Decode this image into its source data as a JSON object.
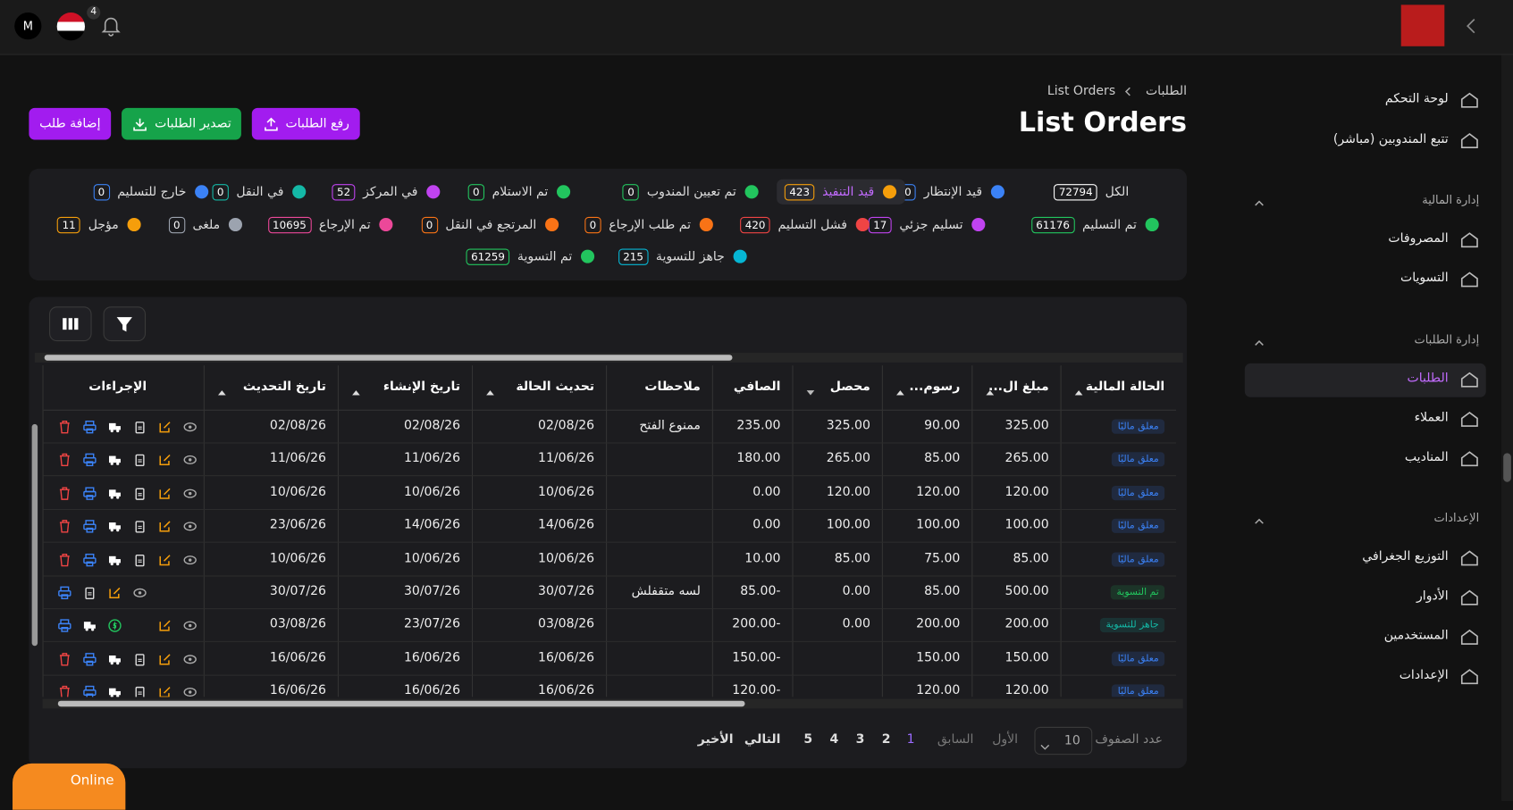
{
  "topbar": {
    "avatar": "M",
    "notification_count": "4"
  },
  "sidebar": {
    "top": [
      "لوحة التحكم",
      "تتبع المندوبين (مباشر)"
    ],
    "sections": [
      {
        "title": "إدارة المالية",
        "items": [
          "المصروفات",
          "التسويات"
        ]
      },
      {
        "title": "إدارة الطلبات",
        "items": [
          "الطلبات",
          "العملاء",
          "المناديب"
        ]
      },
      {
        "title": "الإعدادات",
        "items": [
          "التوزيع الجغرافي",
          "الأدوار",
          "المستخدمين",
          "الإعدادات"
        ]
      }
    ]
  },
  "breadcrumb": [
    "الطلبات",
    "List Orders"
  ],
  "title": "List Orders",
  "buttons": [
    {
      "label": "رفع الطلبات",
      "color": "#a21cef"
    },
    {
      "label": "تصدير الطلبات",
      "color": "#16a34a"
    },
    {
      "label": "إضافة طلب",
      "color": "#a21cef"
    }
  ],
  "statuses": [
    [
      {
        "label": "الكل",
        "count": 72794,
        "color": "#ffffff"
      },
      {
        "label": "قيد الإنتظار",
        "count": 0,
        "color": "#3b82f6"
      },
      {
        "label": "قيد التنفيذ",
        "count": 423,
        "color": "#f59e0b"
      },
      {
        "label": "تم تعيين المندوب",
        "count": 0,
        "color": "#22c55e"
      },
      {
        "label": "تم الاستلام",
        "count": 0,
        "color": "#22c55e"
      },
      {
        "label": "في المركز",
        "count": 52,
        "color": "#c043f0"
      },
      {
        "label": "في النقل",
        "count": 0,
        "color": "#14b8a6"
      },
      {
        "label": "خارج للتسليم",
        "count": 0,
        "color": "#3b82f6"
      }
    ],
    [
      {
        "label": "تم التسليم",
        "count": 61176,
        "color": "#22c55e"
      },
      {
        "label": "تسليم جزئي",
        "count": 17,
        "color": "#c043f0"
      },
      {
        "label": "فشل التسليم",
        "count": 420,
        "color": "#ef4444"
      },
      {
        "label": "تم طلب الإرجاع",
        "count": 0,
        "color": "#f97316"
      },
      {
        "label": "المرتجع في النقل",
        "count": 0,
        "color": "#f97316"
      },
      {
        "label": "تم الإرجاع",
        "count": 10695,
        "color": "#ec4899"
      },
      {
        "label": "ملغى",
        "count": 0,
        "color": "#9ca3af"
      },
      {
        "label": "مؤجل",
        "count": 11,
        "color": "#f59e0b"
      }
    ],
    [
      {
        "label": "جاهز للتسوية",
        "count": 215,
        "color": "#06b6d4"
      },
      {
        "label": "تم التسوية",
        "count": 61259,
        "color": "#22c55e"
      }
    ]
  ],
  "table": {
    "headers": [
      "الحالة المالية",
      "مبلغ ال...",
      "رسوم...",
      "محصل",
      "الصافي",
      "ملاحظات",
      "تحديث الحالة",
      "تاريخ الإنشاء",
      "تاريخ التحديث",
      "الإجراءات"
    ],
    "rows": [
      {
        "status_color": "#3b82f6",
        "cells": [
          "معلق ماليًا",
          "325.00",
          "90.00",
          "325.00",
          "235.00",
          "ممنوع الفتح",
          "02/08/26",
          "02/08/26",
          "02/08/26"
        ]
      },
      {
        "status_color": "#3b82f6",
        "cells": [
          "معلق ماليًا",
          "265.00",
          "85.00",
          "265.00",
          "180.00",
          null,
          "11/06/26",
          "11/06/26",
          "11/06/26"
        ]
      },
      {
        "status_color": "#3b82f6",
        "cells": [
          "معلق ماليًا",
          "120.00",
          "120.00",
          "120.00",
          "0.00",
          null,
          "10/06/26",
          "10/06/26",
          "10/06/26"
        ]
      },
      {
        "status_color": "#3b82f6",
        "cells": [
          "معلق ماليًا",
          "100.00",
          "100.00",
          "100.00",
          "0.00",
          null,
          "14/06/26",
          "14/06/26",
          "23/06/26"
        ]
      },
      {
        "status_color": "#3b82f6",
        "cells": [
          "معلق ماليًا",
          "85.00",
          "75.00",
          "85.00",
          "10.00",
          null,
          "10/06/26",
          "10/06/26",
          "10/06/26"
        ]
      },
      {
        "status_color": "#22c55e",
        "cells": [
          "تم التسوية",
          "500.00",
          "85.00",
          "0.00",
          "-85.00",
          "لسه متقفلش",
          "30/07/26",
          "30/07/26",
          "30/07/26"
        ]
      },
      {
        "status_color": "#14b8a6",
        "cells": [
          "جاهز للتسوية",
          "200.00",
          "200.00",
          "0.00",
          "-200.00",
          null,
          "03/08/26",
          "23/07/26",
          "03/08/26"
        ]
      },
      {
        "status_color": "#3b82f6",
        "cells": [
          "معلق ماليًا",
          "150.00",
          "150.00",
          null,
          "-150.00",
          null,
          "16/06/26",
          "16/06/26",
          "16/06/26"
        ]
      },
      {
        "status_color": "#3b82f6",
        "cells": [
          "معلق ماليًا",
          "120.00",
          "120.00",
          null,
          "-120.00",
          null,
          "16/06/26",
          "16/06/26",
          "16/06/26"
        ]
      }
    ]
  },
  "pagination": {
    "rows_label": "عدد الصفوف",
    "page_size": 10,
    "first": "الأول",
    "prev": "السابق",
    "pages": [
      1,
      2,
      3,
      4,
      5
    ],
    "next": "التالي",
    "last": "الأخير"
  },
  "online": "Online"
}
